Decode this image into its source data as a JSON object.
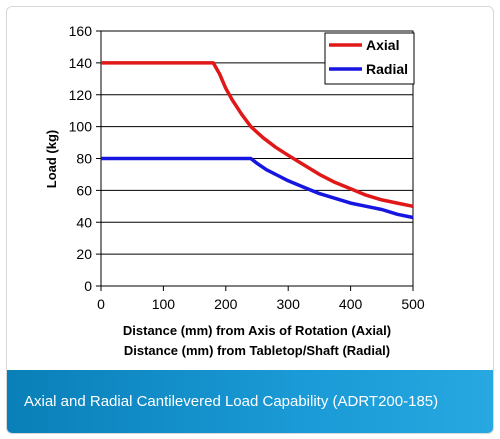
{
  "chart_data": {
    "type": "line",
    "title": "",
    "xlabel": "Distance (mm) from Axis of Rotation (Axial)",
    "xlabel2": "Distance (mm) from Tabletop/Shaft (Radial)",
    "ylabel": "Load (kg)",
    "xlim": [
      0,
      500
    ],
    "ylim": [
      0,
      160
    ],
    "xticks": [
      "0",
      "100",
      "200",
      "300",
      "400",
      "500"
    ],
    "yticks": [
      "0",
      "20",
      "40",
      "60",
      "80",
      "100",
      "120",
      "140",
      "160"
    ],
    "grid": "horizontal",
    "legend_position": "top-right",
    "series": [
      {
        "name": "Axial",
        "color": "#e01818",
        "points": [
          [
            0,
            140
          ],
          [
            175,
            140
          ],
          [
            180,
            140
          ],
          [
            190,
            133
          ],
          [
            200,
            124
          ],
          [
            210,
            117
          ],
          [
            225,
            108
          ],
          [
            240,
            100
          ],
          [
            260,
            93
          ],
          [
            280,
            87
          ],
          [
            300,
            82
          ],
          [
            325,
            76
          ],
          [
            350,
            70
          ],
          [
            375,
            65
          ],
          [
            400,
            61
          ],
          [
            425,
            57
          ],
          [
            450,
            54
          ],
          [
            475,
            52
          ],
          [
            500,
            50
          ]
        ]
      },
      {
        "name": "Radial",
        "color": "#1616e0",
        "points": [
          [
            0,
            80
          ],
          [
            235,
            80
          ],
          [
            240,
            80
          ],
          [
            250,
            77
          ],
          [
            265,
            73
          ],
          [
            285,
            69
          ],
          [
            300,
            66
          ],
          [
            325,
            62
          ],
          [
            350,
            58
          ],
          [
            375,
            55
          ],
          [
            400,
            52
          ],
          [
            425,
            50
          ],
          [
            450,
            48
          ],
          [
            475,
            45
          ],
          [
            500,
            43
          ]
        ]
      }
    ]
  },
  "caption": "Axial and Radial Cantilevered Load Capability (ADRT200-185)"
}
